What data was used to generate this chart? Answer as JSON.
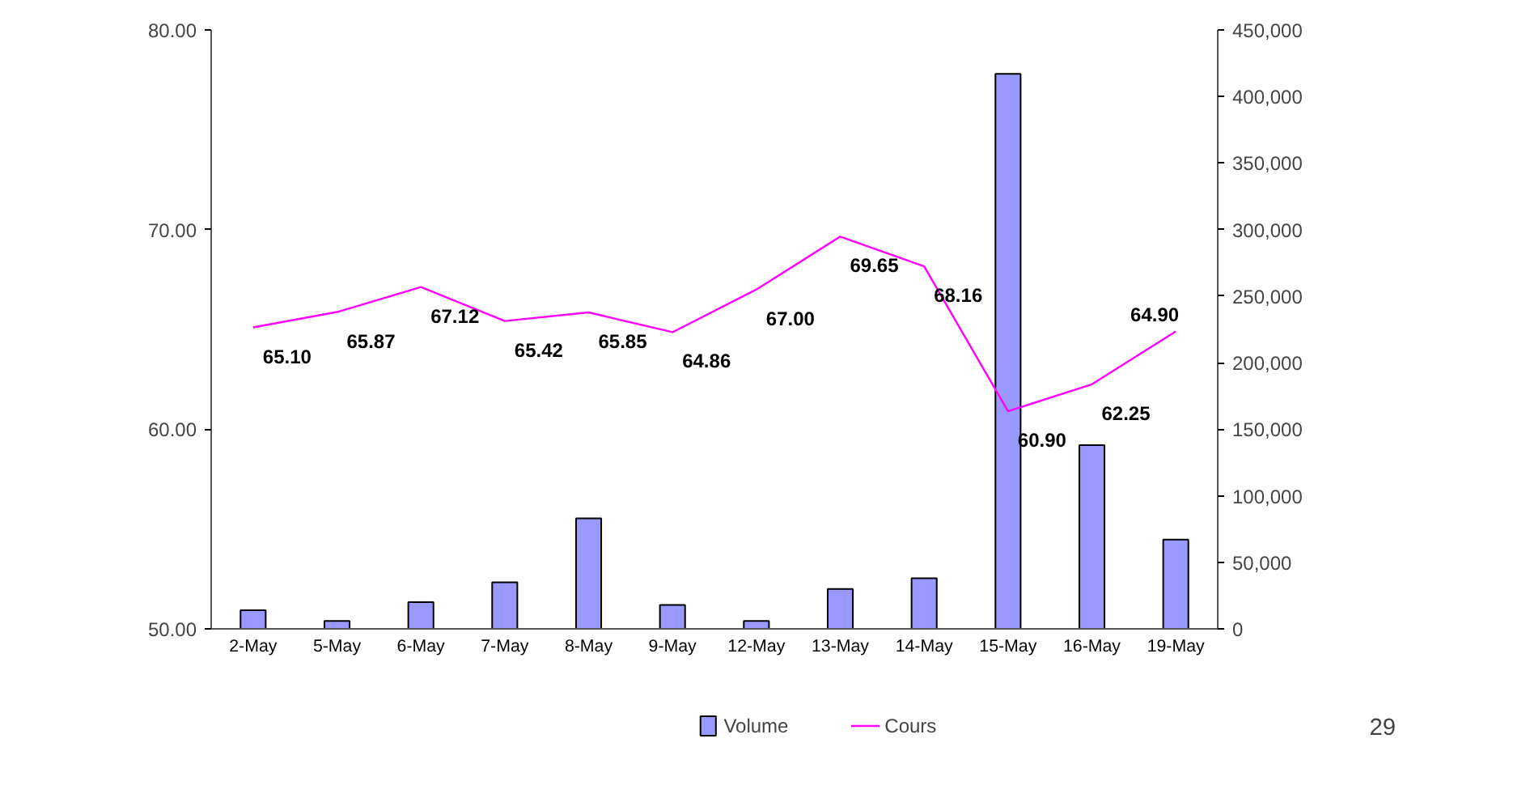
{
  "chart_data": {
    "type": "bar",
    "categories": [
      "2-May",
      "5-May",
      "6-May",
      "7-May",
      "8-May",
      "9-May",
      "12-May",
      "13-May",
      "14-May",
      "15-May",
      "16-May",
      "19-May"
    ],
    "series": [
      {
        "name": "Volume",
        "axis": "y2",
        "color": "#9999ff",
        "values": [
          14000,
          6000,
          20000,
          35000,
          83000,
          18000,
          6000,
          30000,
          38000,
          417000,
          138000,
          67000
        ]
      },
      {
        "name": "Cours",
        "type": "line",
        "color": "#ff00ff",
        "values": [
          65.1,
          65.87,
          67.12,
          65.42,
          65.85,
          64.86,
          67.0,
          69.65,
          68.16,
          60.9,
          62.25,
          64.9
        ],
        "value_labels": [
          "65.10",
          "65.87",
          "67.12",
          "65.42",
          "65.85",
          "64.86",
          "67.00",
          "69.65",
          "68.16",
          "60.90",
          "62.25",
          "64.90"
        ]
      }
    ],
    "ylim": [
      50,
      80
    ],
    "yticks": [
      {
        "value": 50,
        "label": "50.00"
      },
      {
        "value": 60,
        "label": "60.00"
      },
      {
        "value": 70,
        "label": "70.00"
      },
      {
        "value": 80,
        "label": "80.00"
      }
    ],
    "y2lim": [
      0,
      450000
    ],
    "y2ticks": [
      {
        "value": 0,
        "label": "0"
      },
      {
        "value": 50000,
        "label": "50,000"
      },
      {
        "value": 100000,
        "label": "100,000"
      },
      {
        "value": 150000,
        "label": "150,000"
      },
      {
        "value": 200000,
        "label": "200,000"
      },
      {
        "value": 250000,
        "label": "250,000"
      },
      {
        "value": 300000,
        "label": "300,000"
      },
      {
        "value": 350000,
        "label": "350,000"
      },
      {
        "value": 400000,
        "label": "400,000"
      },
      {
        "value": 450000,
        "label": "450,000"
      }
    ],
    "legend": "bottom",
    "grid": false,
    "annotations": [
      "29"
    ]
  }
}
